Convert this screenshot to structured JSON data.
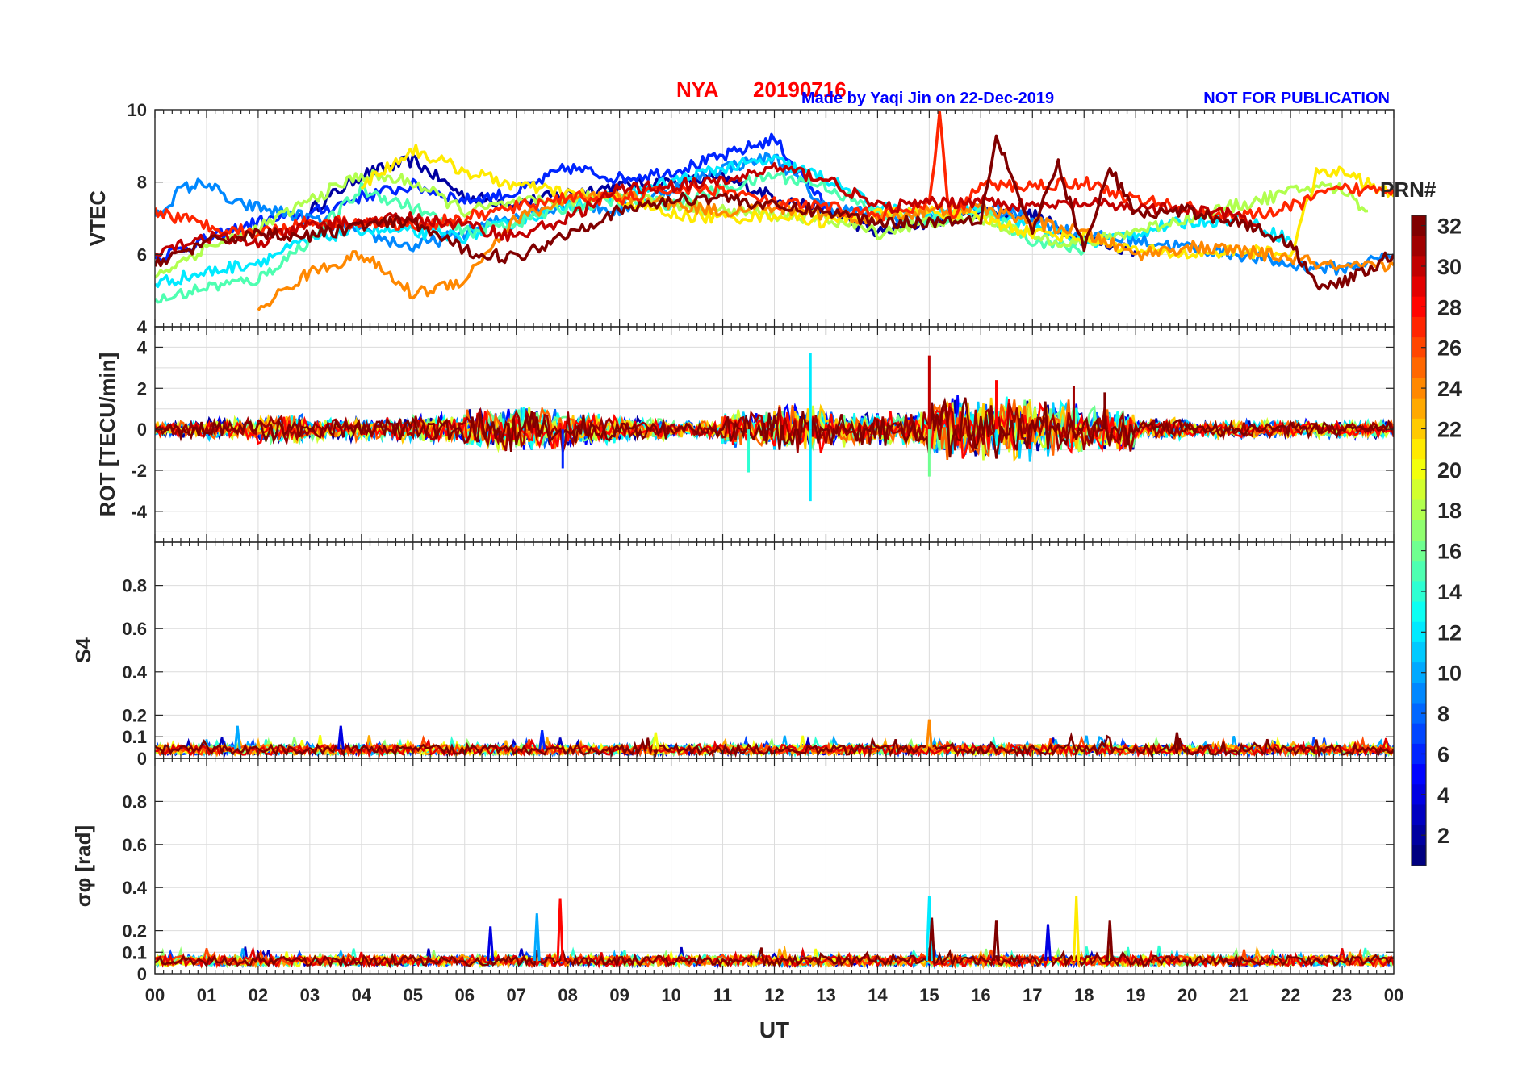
{
  "title": {
    "station": "NYA",
    "date": "20190716",
    "credit": "Made by Yaqi Jin on 22-Dec-2019",
    "notice": "NOT FOR PUBLICATION"
  },
  "colorbar": {
    "label": "PRN#",
    "range": [
      1,
      32
    ],
    "ticks": [
      "2",
      "4",
      "6",
      "8",
      "10",
      "12",
      "14",
      "16",
      "18",
      "20",
      "22",
      "24",
      "26",
      "28",
      "30",
      "32"
    ],
    "colormap": "jet"
  },
  "chart_data": [
    {
      "type": "line",
      "panel": "vtec",
      "ylabel": "VTEC",
      "ylim": [
        4,
        10
      ],
      "yticks": [
        "4",
        "6",
        "8",
        "10"
      ],
      "grid": true,
      "series": [
        {
          "prn": 2,
          "x": [
            3,
            4,
            5,
            6,
            7,
            8,
            9,
            10,
            11,
            12,
            13,
            14,
            15,
            16,
            17,
            18,
            19
          ],
          "y": [
            7.2,
            8.2,
            8.6,
            7.6,
            7.4,
            7.7,
            7.9,
            8.0,
            8.1,
            7.6,
            7.2,
            6.6,
            6.9,
            7.2,
            7.1,
            6.4,
            6.1
          ]
        },
        {
          "prn": 6,
          "x": [
            0,
            1,
            2,
            3,
            4,
            5,
            6,
            7,
            8,
            9,
            10,
            11,
            12,
            13
          ],
          "y": [
            5.9,
            6.4,
            6.9,
            7.1,
            7.6,
            7.9,
            7.5,
            7.7,
            8.4,
            8.1,
            8.3,
            8.7,
            9.2,
            7.3
          ]
        },
        {
          "prn": 9,
          "x": [
            0,
            0.5,
            1,
            1.5,
            2,
            3,
            4,
            5,
            6,
            7,
            8,
            9,
            10,
            11,
            12,
            13,
            14,
            15,
            16,
            17,
            18,
            19,
            20,
            21,
            22,
            23,
            24
          ],
          "y": [
            7.0,
            7.8,
            8.0,
            7.4,
            7.3,
            7.0,
            6.6,
            6.2,
            6.6,
            7.1,
            7.4,
            7.2,
            7.8,
            8.4,
            8.7,
            7.3,
            7.1,
            7.0,
            7.3,
            7.0,
            6.5,
            6.4,
            6.2,
            6.0,
            5.7,
            5.6,
            6.0
          ]
        },
        {
          "prn": 12,
          "x": [
            0,
            1,
            2,
            3,
            4,
            5,
            6,
            7,
            8,
            9,
            10,
            11,
            12,
            13,
            14,
            15,
            16,
            17,
            18,
            19,
            20,
            21,
            22
          ],
          "y": [
            5.2,
            5.5,
            5.8,
            6.4,
            6.7,
            6.6,
            6.5,
            6.9,
            7.4,
            7.6,
            8.0,
            8.4,
            8.6,
            8.1,
            7.3,
            7.1,
            7.3,
            6.8,
            6.3,
            6.6,
            6.9,
            7.0,
            6.4
          ]
        },
        {
          "prn": 15,
          "x": [
            0,
            1,
            2,
            3,
            4,
            5,
            6,
            7,
            8,
            9,
            10,
            11,
            12,
            13,
            14,
            15,
            16,
            17,
            18
          ],
          "y": [
            4.7,
            5.1,
            5.3,
            6.4,
            7.8,
            7.3,
            6.6,
            6.9,
            7.3,
            7.5,
            7.4,
            7.8,
            8.2,
            7.9,
            7.1,
            6.9,
            7.2,
            6.4,
            6.1
          ]
        },
        {
          "prn": 18,
          "x": [
            0,
            1,
            2,
            3,
            4,
            5,
            6,
            7,
            8,
            9,
            10,
            11,
            12,
            13,
            14,
            15,
            16,
            17,
            18,
            22.5,
            23,
            23.5
          ],
          "y": [
            5.4,
            6.2,
            6.7,
            7.5,
            8.2,
            8.0,
            7.2,
            7.4,
            7.5,
            7.7,
            7.4,
            7.2,
            7.1,
            7.0,
            6.6,
            6.9,
            7.0,
            6.5,
            6.3,
            7.9,
            7.8,
            7.2
          ]
        },
        {
          "prn": 21,
          "x": [
            4,
            5,
            6,
            7,
            8,
            9,
            10,
            11,
            12,
            13,
            14,
            15,
            16,
            17,
            18,
            19,
            20,
            21,
            22,
            22.5,
            23,
            24
          ],
          "y": [
            7.9,
            8.9,
            8.3,
            7.9,
            7.7,
            7.5,
            7.1,
            7.0,
            7.1,
            6.9,
            7.1,
            7.2,
            7.0,
            6.6,
            6.5,
            6.1,
            6.0,
            6.1,
            6.0,
            8.2,
            8.3,
            7.6
          ]
        },
        {
          "prn": 24,
          "x": [
            2,
            3,
            4,
            5,
            6,
            6.5,
            7,
            8,
            9,
            10,
            11,
            12,
            13,
            14,
            15,
            16,
            17,
            18,
            19,
            20,
            21,
            22,
            23,
            24
          ],
          "y": [
            4.5,
            5.5,
            6.0,
            4.9,
            5.3,
            6.2,
            7.0,
            7.5,
            7.6,
            7.4,
            7.2,
            7.3,
            7.1,
            7.0,
            7.2,
            7.3,
            6.9,
            6.6,
            6.0,
            6.2,
            6.1,
            5.9,
            5.6,
            5.7
          ]
        },
        {
          "prn": 27,
          "x": [
            0,
            1,
            2,
            3,
            4,
            5,
            6,
            7,
            8,
            9,
            10,
            11,
            12,
            13,
            14,
            15,
            15.2,
            15.4,
            16,
            17,
            18,
            19,
            20,
            21,
            22,
            22.5,
            23,
            24
          ],
          "y": [
            7.2,
            6.8,
            6.6,
            6.9,
            6.9,
            6.8,
            7.0,
            7.3,
            7.6,
            7.5,
            7.8,
            7.8,
            7.4,
            7.3,
            7.1,
            7.3,
            9.8,
            7.0,
            7.9,
            7.9,
            8.0,
            7.5,
            7.3,
            7.0,
            7.3,
            7.6,
            7.8,
            7.8
          ]
        },
        {
          "prn": 30,
          "x": [
            0,
            1,
            2,
            3,
            4,
            5,
            6,
            7,
            8,
            9,
            10,
            11,
            12,
            13,
            14,
            15,
            16,
            17,
            18,
            19,
            20,
            21,
            21.5
          ],
          "y": [
            6.1,
            6.5,
            6.3,
            6.8,
            6.9,
            7.0,
            6.8,
            6.5,
            7.0,
            7.8,
            7.9,
            8.0,
            8.4,
            8.1,
            7.3,
            7.4,
            7.5,
            7.3,
            7.4,
            7.3,
            7.2,
            7.1,
            6.5
          ]
        },
        {
          "prn": 32,
          "x": [
            0,
            1,
            2,
            3,
            4,
            5,
            6,
            7,
            8,
            9,
            10,
            11,
            12,
            13,
            14,
            15,
            16,
            16.3,
            17,
            17.5,
            18,
            18.5,
            19,
            20,
            21,
            22,
            22.5,
            23,
            24
          ],
          "y": [
            5.8,
            6.3,
            6.6,
            6.5,
            6.8,
            6.9,
            6.1,
            5.9,
            6.6,
            7.2,
            7.5,
            7.6,
            7.3,
            7.2,
            6.9,
            6.9,
            7.0,
            9.3,
            6.6,
            8.5,
            6.1,
            8.4,
            7.1,
            7.2,
            6.9,
            6.3,
            5.2,
            5.2,
            6.0
          ]
        }
      ]
    },
    {
      "type": "line",
      "panel": "rot",
      "ylabel": "ROT [TECU/min]",
      "ylim": [
        -5.5,
        5
      ],
      "yticks": [
        "-4",
        "-2",
        "0",
        "2",
        "4"
      ],
      "grid": true,
      "noise_amplitude_by_hour": [
        0.3,
        0.4,
        0.5,
        0.4,
        0.4,
        0.5,
        0.8,
        0.8,
        0.6,
        0.4,
        0.3,
        0.7,
        0.9,
        0.6,
        0.6,
        1.2,
        1.1,
        1.0,
        0.8,
        0.4,
        0.3,
        0.3,
        0.3,
        0.3,
        0.3
      ],
      "spikes": [
        {
          "x": 12.7,
          "y": 3.7
        },
        {
          "x": 12.7,
          "y": -3.5
        },
        {
          "x": 15.0,
          "y": 3.6
        },
        {
          "x": 16.3,
          "y": 2.4
        },
        {
          "x": 11.5,
          "y": -2.1
        },
        {
          "x": 15.0,
          "y": -2.3
        },
        {
          "x": 7.9,
          "y": -1.9
        },
        {
          "x": 17.8,
          "y": 2.1
        },
        {
          "x": 18.4,
          "y": 1.8
        }
      ]
    },
    {
      "type": "line",
      "panel": "s4",
      "ylabel": "S4",
      "ylim": [
        0,
        1
      ],
      "yticks": [
        "0",
        "0.1",
        "0.2",
        "0.4",
        "0.6",
        "0.8"
      ],
      "grid": true,
      "baseline": 0.04,
      "spikes": [
        {
          "x": 1.6,
          "y": 0.15
        },
        {
          "x": 3.6,
          "y": 0.15
        },
        {
          "x": 7.5,
          "y": 0.13
        },
        {
          "x": 9.7,
          "y": 0.12
        },
        {
          "x": 15.0,
          "y": 0.18
        },
        {
          "x": 19.8,
          "y": 0.12
        }
      ]
    },
    {
      "type": "line",
      "panel": "sigma_phi",
      "ylabel": "σφ [rad]",
      "ylim": [
        0,
        1
      ],
      "yticks": [
        "0",
        "0.1",
        "0.2",
        "0.4",
        "0.6",
        "0.8"
      ],
      "xlabel": "UT",
      "xlim": [
        0,
        24
      ],
      "xticks": [
        "00",
        "01",
        "02",
        "03",
        "04",
        "05",
        "06",
        "07",
        "08",
        "09",
        "10",
        "11",
        "12",
        "13",
        "14",
        "15",
        "16",
        "17",
        "18",
        "19",
        "20",
        "21",
        "22",
        "23",
        "00"
      ],
      "grid": true,
      "baseline": 0.06,
      "spikes": [
        {
          "x": 6.5,
          "y": 0.22
        },
        {
          "x": 7.4,
          "y": 0.28
        },
        {
          "x": 7.85,
          "y": 0.35
        },
        {
          "x": 15.0,
          "y": 0.36
        },
        {
          "x": 15.05,
          "y": 0.26
        },
        {
          "x": 16.3,
          "y": 0.25
        },
        {
          "x": 17.3,
          "y": 0.23
        },
        {
          "x": 17.85,
          "y": 0.36
        },
        {
          "x": 18.5,
          "y": 0.25
        }
      ]
    }
  ]
}
